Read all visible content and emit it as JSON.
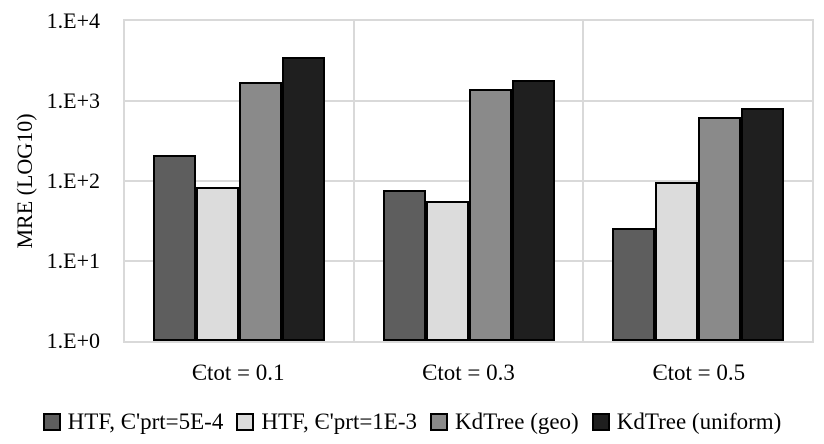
{
  "chart_data": {
    "type": "bar",
    "title": "",
    "ylabel": "MRE (LOG10)",
    "xlabel": "",
    "y_scale": "log10",
    "ylim": [
      1,
      10000
    ],
    "ytick_labels": [
      "1.E+4",
      "1.E+3",
      "1.E+2",
      "1.E+1",
      "1.E+0"
    ],
    "grid": true,
    "legend_position": "bottom",
    "categories": [
      "Єtot = 0.1",
      "Єtot = 0.3",
      "Єtot = 0.5"
    ],
    "series": [
      {
        "name": "HTF, Є'prt=5E-4",
        "color": "#5e5e5e",
        "values": [
          210,
          78,
          26
        ]
      },
      {
        "name": "HTF, Є'prt=1E-3",
        "color": "#dcdcdc",
        "values": [
          85,
          56,
          97
        ]
      },
      {
        "name": "KdTree (geo)",
        "color": "#8a8a8a",
        "values": [
          1750,
          1400,
          630
        ]
      },
      {
        "name": "KdTree (uniform)",
        "color": "#1f1f1f",
        "values": [
          3500,
          1850,
          810
        ]
      }
    ],
    "colors": {
      "gridline": "#d9d9d9",
      "bar_border": "#000000",
      "text": "#000000",
      "background": "#ffffff"
    }
  }
}
